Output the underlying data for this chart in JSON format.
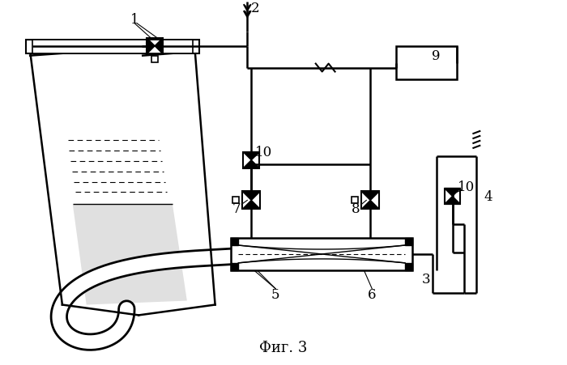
{
  "title": "Фиг. 3",
  "bg_color": "#ffffff",
  "line_color": "#000000"
}
